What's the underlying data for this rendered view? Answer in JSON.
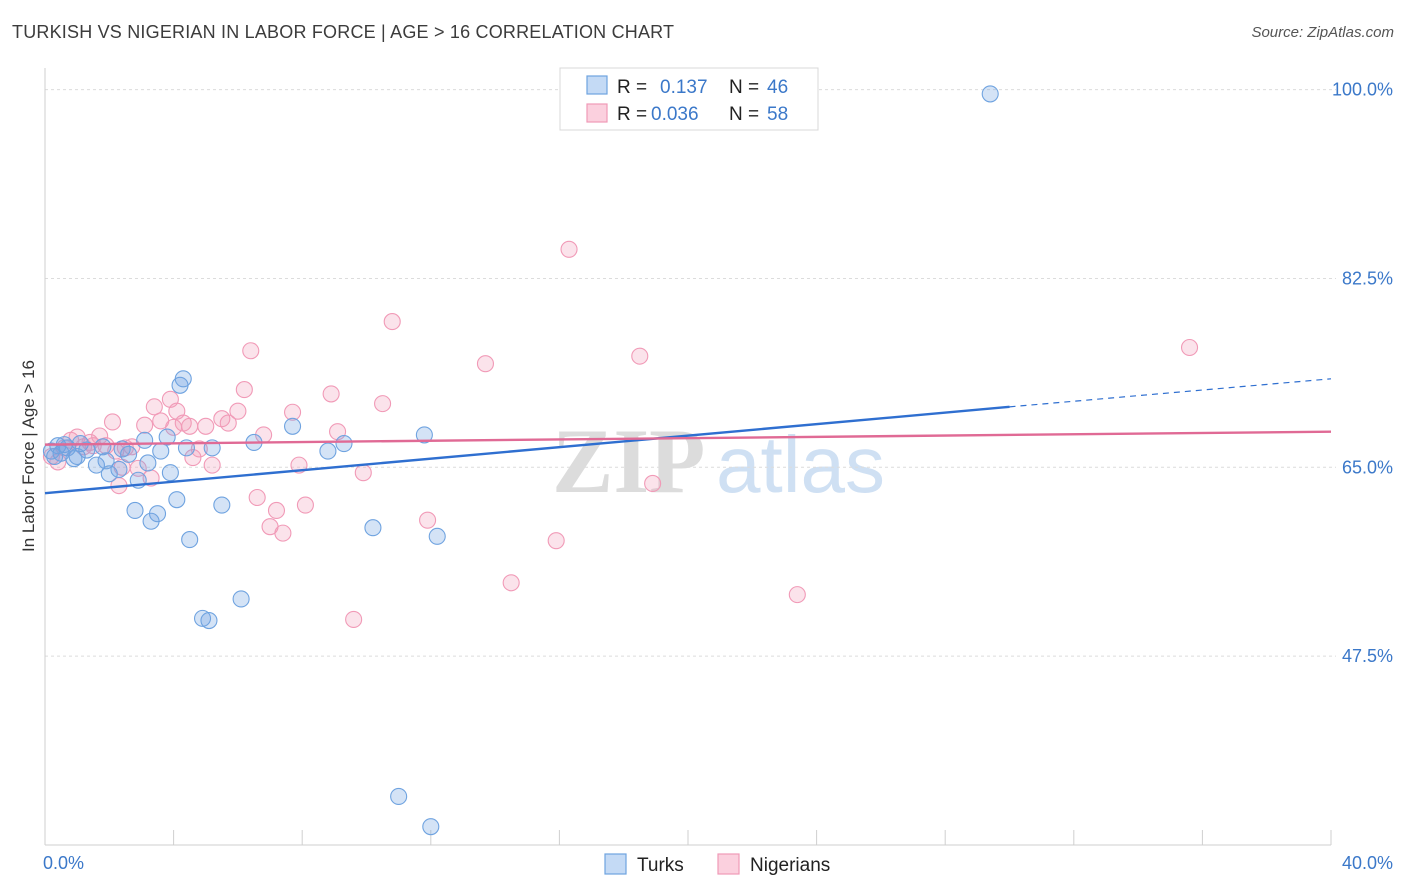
{
  "title": "TURKISH VS NIGERIAN IN LABOR FORCE | AGE > 16 CORRELATION CHART",
  "source": "Source: ZipAtlas.com",
  "watermark": {
    "zip": "ZIP",
    "atlas": "atlas"
  },
  "colors": {
    "turks": "#6fa3e0",
    "turks_line": "#2f6fd0",
    "nigerians": "#f19ab7",
    "nigerians_line": "#e06a95",
    "tick": "#3b78c9"
  },
  "chart_data": {
    "type": "scatter",
    "title": "TURKISH VS NIGERIAN IN LABOR FORCE | AGE > 16 CORRELATION CHART",
    "xlabel": "",
    "ylabel": "In Labor Force | Age > 16",
    "xlim": [
      0,
      40
    ],
    "ylim": [
      30,
      102
    ],
    "x_tick_labels": [
      {
        "value": 0,
        "label": "0.0%"
      },
      {
        "value": 40,
        "label": "40.0%"
      }
    ],
    "y_tick_labels": [
      {
        "value": 100,
        "label": "100.0%"
      },
      {
        "value": 82.5,
        "label": "82.5%"
      },
      {
        "value": 65,
        "label": "65.0%"
      },
      {
        "value": 47.5,
        "label": "47.5%"
      }
    ],
    "legend": [
      {
        "r_label": "R =",
        "r_value": "0.137",
        "n_label": "N =",
        "n_value": "46"
      },
      {
        "r_label": "R =",
        "r_value": "0.036",
        "n_label": "N =",
        "n_value": "58"
      }
    ],
    "series": [
      {
        "name": "Turks",
        "trend": {
          "x0": 0,
          "y0": 62.6,
          "x1": 30,
          "y1": 70.6,
          "dash_x1": 40,
          "dash_y1": 73.2
        },
        "points": [
          [
            0.2,
            66.5
          ],
          [
            0.3,
            66.0
          ],
          [
            0.4,
            67.0
          ],
          [
            0.5,
            66.3
          ],
          [
            0.6,
            67.1
          ],
          [
            0.7,
            66.8
          ],
          [
            0.9,
            65.8
          ],
          [
            1.1,
            67.2
          ],
          [
            1.3,
            66.6
          ],
          [
            1.6,
            65.2
          ],
          [
            1.8,
            66.9
          ],
          [
            1.9,
            65.6
          ],
          [
            2.0,
            64.4
          ],
          [
            2.3,
            64.8
          ],
          [
            2.4,
            66.7
          ],
          [
            2.6,
            66.2
          ],
          [
            2.8,
            61.0
          ],
          [
            2.9,
            63.8
          ],
          [
            3.1,
            67.5
          ],
          [
            3.2,
            65.4
          ],
          [
            3.3,
            60.0
          ],
          [
            3.5,
            60.7
          ],
          [
            3.6,
            66.5
          ],
          [
            3.8,
            67.8
          ],
          [
            3.9,
            64.5
          ],
          [
            4.1,
            62.0
          ],
          [
            4.2,
            72.6
          ],
          [
            4.3,
            73.2
          ],
          [
            4.4,
            66.8
          ],
          [
            4.5,
            58.3
          ],
          [
            4.9,
            51.0
          ],
          [
            5.1,
            50.8
          ],
          [
            5.2,
            66.8
          ],
          [
            5.5,
            61.5
          ],
          [
            6.1,
            52.8
          ],
          [
            6.5,
            67.3
          ],
          [
            7.7,
            68.8
          ],
          [
            8.8,
            66.5
          ],
          [
            9.3,
            67.2
          ],
          [
            10.2,
            59.4
          ],
          [
            11.0,
            34.5
          ],
          [
            11.8,
            68.0
          ],
          [
            12.0,
            31.7
          ],
          [
            12.2,
            58.6
          ],
          [
            29.4,
            99.6
          ],
          [
            1.0,
            66.0
          ]
        ]
      },
      {
        "name": "Nigerians",
        "trend": {
          "x0": 0,
          "y0": 67.1,
          "x1": 40,
          "y1": 68.3
        },
        "points": [
          [
            0.2,
            66.0
          ],
          [
            0.4,
            65.5
          ],
          [
            0.6,
            66.8
          ],
          [
            0.8,
            67.5
          ],
          [
            1.0,
            67.8
          ],
          [
            1.2,
            66.9
          ],
          [
            1.4,
            67.3
          ],
          [
            1.7,
            67.9
          ],
          [
            1.9,
            67.0
          ],
          [
            2.1,
            69.2
          ],
          [
            2.3,
            63.3
          ],
          [
            2.4,
            65.0
          ],
          [
            2.5,
            66.8
          ],
          [
            2.7,
            66.9
          ],
          [
            2.9,
            64.9
          ],
          [
            3.1,
            68.9
          ],
          [
            3.3,
            64.0
          ],
          [
            3.4,
            70.6
          ],
          [
            3.6,
            69.3
          ],
          [
            3.9,
            71.3
          ],
          [
            4.0,
            68.7
          ],
          [
            4.1,
            70.2
          ],
          [
            4.3,
            69.1
          ],
          [
            4.5,
            68.8
          ],
          [
            4.6,
            65.9
          ],
          [
            4.8,
            66.7
          ],
          [
            5.0,
            68.8
          ],
          [
            5.2,
            65.2
          ],
          [
            5.5,
            69.5
          ],
          [
            5.7,
            69.1
          ],
          [
            6.0,
            70.2
          ],
          [
            6.2,
            72.2
          ],
          [
            6.4,
            75.8
          ],
          [
            6.6,
            62.2
          ],
          [
            6.8,
            68.0
          ],
          [
            7.0,
            59.5
          ],
          [
            7.2,
            61.0
          ],
          [
            7.4,
            58.9
          ],
          [
            7.7,
            70.1
          ],
          [
            7.9,
            65.2
          ],
          [
            8.1,
            61.5
          ],
          [
            8.9,
            71.8
          ],
          [
            9.1,
            68.3
          ],
          [
            9.6,
            50.9
          ],
          [
            9.9,
            64.5
          ],
          [
            10.5,
            70.9
          ],
          [
            10.8,
            78.5
          ],
          [
            11.9,
            60.1
          ],
          [
            13.7,
            74.6
          ],
          [
            14.5,
            54.3
          ],
          [
            15.9,
            58.2
          ],
          [
            16.3,
            85.2
          ],
          [
            18.5,
            75.3
          ],
          [
            18.9,
            63.5
          ],
          [
            23.4,
            53.2
          ],
          [
            35.6,
            76.1
          ],
          [
            1.5,
            67.0
          ],
          [
            2.2,
            66.5
          ]
        ]
      }
    ],
    "bottom_legend": [
      "Turks",
      "Nigerians"
    ]
  }
}
